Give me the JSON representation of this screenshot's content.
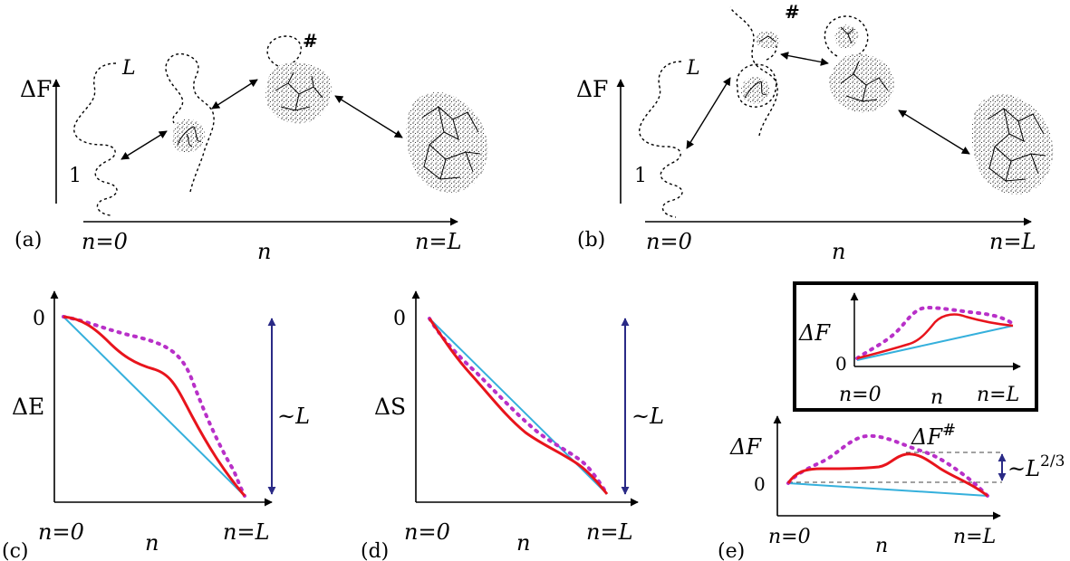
{
  "colors": {
    "solid_red": "#e8141c",
    "dotted_magenta": "#b830c8",
    "straight_blue": "#35b0dc",
    "range_arrow": "#2a2a86",
    "ink": "#000000"
  },
  "panels": {
    "a": {
      "label": "(a)",
      "ylabel": "ΔF",
      "x_start": "n=0",
      "x_mid": "n",
      "x_end": "n=L",
      "chain_start": "1",
      "chain_end": "L"
    },
    "b": {
      "label": "(b)",
      "ylabel": "ΔF",
      "x_start": "n=0",
      "x_mid": "n",
      "x_end": "n=L",
      "chain_start": "1",
      "chain_end": "L"
    },
    "c": {
      "label": "(c)",
      "ylabel": "ΔE",
      "zero": "0",
      "x_start": "n=0",
      "x_mid": "n",
      "x_end": "n=L",
      "range": "~L"
    },
    "d": {
      "label": "(d)",
      "ylabel": "ΔS",
      "zero": "0",
      "x_start": "n=0",
      "x_mid": "n",
      "x_end": "n=L",
      "range": "~L"
    },
    "e": {
      "label": "(e)",
      "ylabel": "ΔF",
      "zero": "0",
      "x_start": "n=0",
      "x_mid": "n",
      "x_end": "n=L",
      "barrier_base": "ΔF",
      "barrier_sup": "#",
      "range_base": "~L",
      "range_sup": "2/3"
    },
    "inset": {
      "ylabel": "ΔF",
      "zero": "0",
      "x_start": "n=0",
      "x_mid": "n",
      "x_end": "n=L"
    }
  },
  "nucleus_marker": "#"
}
